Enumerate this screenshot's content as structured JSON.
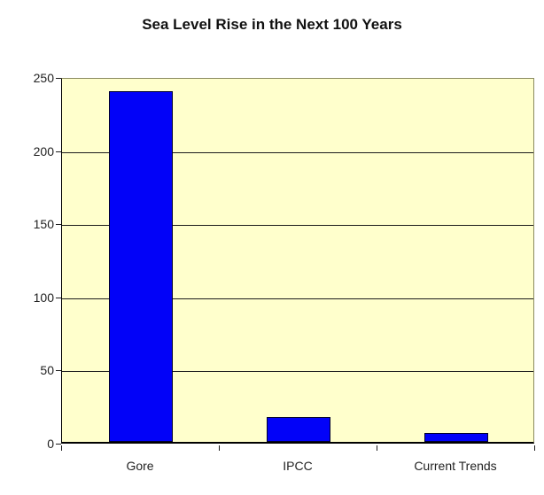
{
  "title": "Sea Level Rise in the Next 100 Years",
  "chart_data": {
    "type": "bar",
    "title": "Sea Level Rise in the Next 100 Years",
    "categories": [
      "Gore",
      "IPCC",
      "Current Trends"
    ],
    "values": [
      240,
      17,
      6
    ],
    "xlabel": "",
    "ylabel": "",
    "ylim": [
      0,
      250
    ],
    "yticks": [
      0,
      50,
      100,
      150,
      200,
      250
    ],
    "ytick_labels": [
      "0",
      "50",
      "100",
      "150",
      "200",
      "250"
    ],
    "grid": "horizontal",
    "legend": "none",
    "colors": {
      "bar_fill": "#0202f8",
      "bar_border": "#000030",
      "plot_background": "#ffffcc",
      "plot_border": "#8a8a60",
      "gridline": "#1c1c1c",
      "axis": "#000000",
      "text": "#222222",
      "title_text": "#111111",
      "page_background": "#ffffff"
    }
  }
}
